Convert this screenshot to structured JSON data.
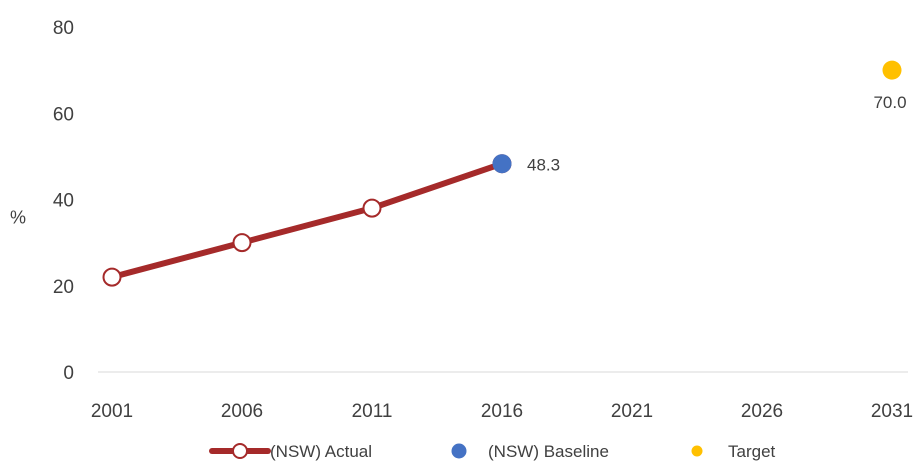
{
  "chart_data": {
    "type": "line",
    "title": "",
    "xlabel": "",
    "ylabel": "%",
    "x_ticks": [
      "2001",
      "2006",
      "2011",
      "2016",
      "2021",
      "2026",
      "2031"
    ],
    "ylim": [
      0,
      80
    ],
    "y_ticks": [
      "0",
      "20",
      "40",
      "60",
      "80"
    ],
    "grid": false,
    "legend_position": "bottom",
    "series": [
      {
        "name": "(NSW) Actual",
        "style": "line-with-hollow-markers",
        "color": "#A52A2A",
        "points": [
          {
            "x": "2001",
            "y": 22.0
          },
          {
            "x": "2006",
            "y": 30.0
          },
          {
            "x": "2011",
            "y": 38.0
          },
          {
            "x": "2016",
            "y": 48.3
          }
        ]
      },
      {
        "name": "(NSW) Baseline",
        "style": "marker",
        "color": "#4472C4",
        "points": [
          {
            "x": "2016",
            "y": 48.3,
            "label": "48.3"
          }
        ]
      },
      {
        "name": "Target",
        "style": "marker",
        "color": "#FFC000",
        "points": [
          {
            "x": "2031",
            "y": 70.0,
            "label": "70.0"
          }
        ]
      }
    ]
  }
}
